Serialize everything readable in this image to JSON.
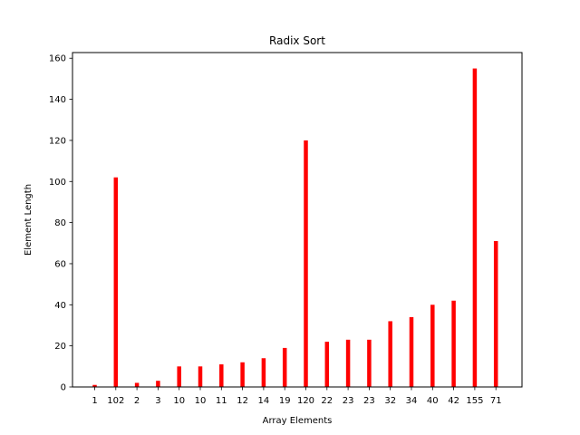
{
  "chart_data": {
    "type": "bar",
    "title": "Radix  Sort",
    "xlabel": "Array Elements",
    "ylabel": "Element Length",
    "categories": [
      "1",
      "102",
      "2",
      "3",
      "10",
      "10",
      "11",
      "12",
      "14",
      "19",
      "120",
      "22",
      "23",
      "23",
      "32",
      "34",
      "40",
      "42",
      "155",
      "71"
    ],
    "values": [
      1,
      102,
      2,
      3,
      10,
      10,
      11,
      12,
      14,
      19,
      120,
      22,
      23,
      23,
      32,
      34,
      40,
      42,
      155,
      71
    ],
    "ylim": [
      0,
      162.75
    ],
    "yticks": [
      0,
      20,
      40,
      60,
      80,
      100,
      120,
      140,
      160
    ],
    "bar_color": "#ff0000",
    "grid": false,
    "legend": "none"
  }
}
